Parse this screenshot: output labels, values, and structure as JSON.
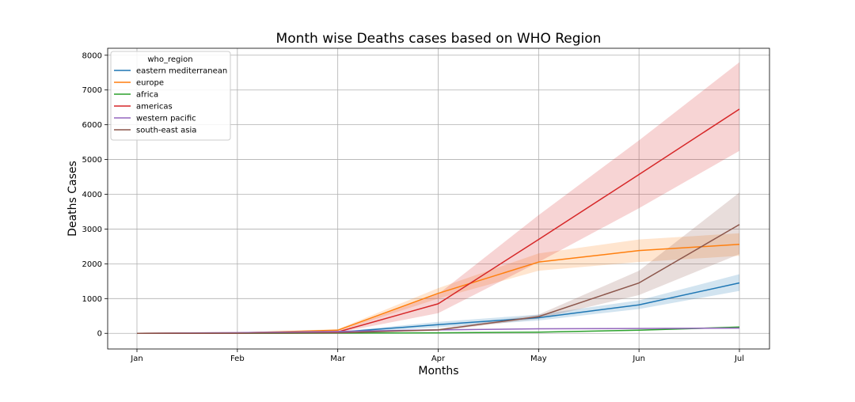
{
  "chart_data": {
    "type": "line",
    "title": "Month wise Deaths cases based on WHO Region",
    "xlabel": "Months",
    "ylabel": "Deaths Cases",
    "categories": [
      "Jan",
      "Feb",
      "Mar",
      "Apr",
      "May",
      "Jun",
      "Jul"
    ],
    "yticks": [
      0,
      1000,
      2000,
      3000,
      4000,
      5000,
      6000,
      7000,
      8000
    ],
    "ylim": [
      -450,
      8200
    ],
    "grid": true,
    "legend": {
      "title": "who_region",
      "placement": "top-left"
    },
    "series": [
      {
        "name": "eastern mediterranean",
        "color": "#1f77b4",
        "values": [
          0,
          10,
          30,
          250,
          450,
          820,
          1450
        ],
        "lower": [
          0,
          5,
          15,
          170,
          370,
          700,
          1220
        ],
        "upper": [
          0,
          15,
          45,
          330,
          540,
          950,
          1700
        ]
      },
      {
        "name": "europe",
        "color": "#ff7f0e",
        "values": [
          0,
          15,
          90,
          1150,
          2050,
          2380,
          2560
        ],
        "lower": [
          0,
          8,
          60,
          1000,
          1800,
          2050,
          2230
        ],
        "upper": [
          0,
          22,
          120,
          1300,
          2300,
          2700,
          2880
        ]
      },
      {
        "name": "africa",
        "color": "#2ca02c",
        "values": [
          0,
          0,
          5,
          15,
          35,
          90,
          180
        ],
        "lower": [
          0,
          0,
          2,
          10,
          28,
          75,
          150
        ],
        "upper": [
          0,
          0,
          8,
          20,
          42,
          105,
          210
        ]
      },
      {
        "name": "americas",
        "color": "#d62728",
        "values": [
          0,
          5,
          40,
          850,
          2700,
          4570,
          6450
        ],
        "lower": [
          0,
          2,
          20,
          580,
          2050,
          3600,
          5250
        ],
        "upper": [
          0,
          10,
          60,
          1130,
          3400,
          5550,
          7800
        ]
      },
      {
        "name": "western pacific",
        "color": "#9467bd",
        "values": [
          0,
          20,
          55,
          100,
          130,
          140,
          150
        ],
        "lower": [
          0,
          12,
          40,
          85,
          115,
          125,
          130
        ],
        "upper": [
          0,
          28,
          70,
          115,
          145,
          155,
          170
        ]
      },
      {
        "name": "south-east asia",
        "color": "#8c564b",
        "values": [
          0,
          3,
          15,
          100,
          480,
          1450,
          3130
        ],
        "lower": [
          0,
          1,
          8,
          70,
          420,
          1100,
          2280
        ],
        "upper": [
          0,
          5,
          22,
          130,
          540,
          1800,
          4050
        ]
      }
    ]
  }
}
